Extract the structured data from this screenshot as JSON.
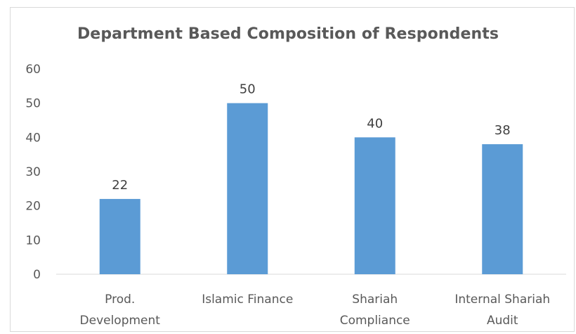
{
  "chart_data": {
    "type": "bar",
    "title": "Department Based Composition of Respondents",
    "categories": [
      [
        "Prod.",
        "Development"
      ],
      [
        "Islamic Finance"
      ],
      [
        "Shariah",
        "Compliance"
      ],
      [
        "Internal Shariah",
        "Audit"
      ]
    ],
    "values": [
      22,
      50,
      40,
      38
    ],
    "ylim": [
      0,
      60
    ],
    "yticks": [
      0,
      10,
      20,
      30,
      40,
      50,
      60
    ],
    "xlabel": "",
    "ylabel": "",
    "grid": false,
    "legend": "none",
    "bar_color": "#5b9bd5",
    "text_color": "#595959",
    "axis_color": "#d9d9d9"
  }
}
